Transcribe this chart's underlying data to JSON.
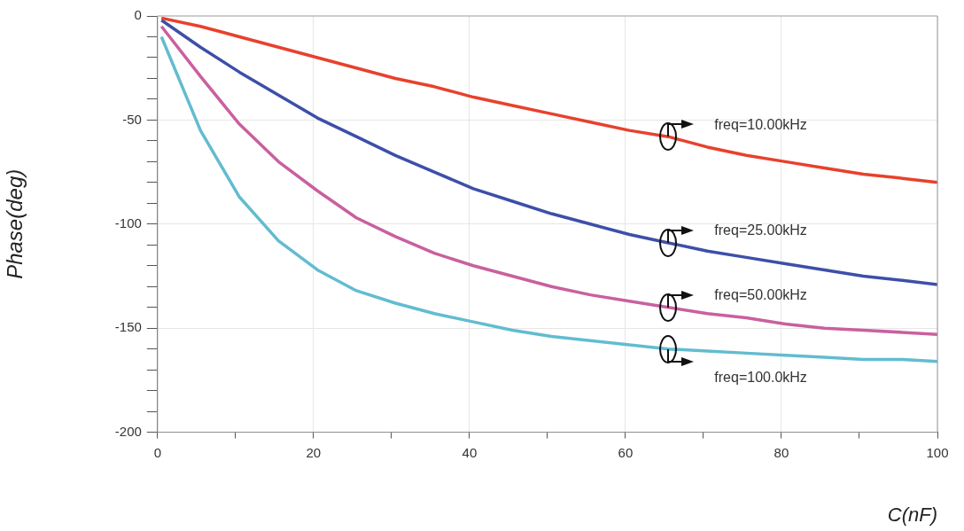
{
  "chart_data": {
    "type": "line",
    "xlabel": "C(nF)",
    "ylabel": "Phase(deg)",
    "x": [
      0.5,
      5.5,
      10.5,
      15.5,
      20.5,
      25.5,
      30.5,
      35.5,
      40.5,
      45.5,
      50.5,
      55.5,
      60.5,
      65.5,
      70.5,
      75.5,
      80.5,
      85.5,
      90.5,
      95.5,
      100
    ],
    "series": [
      {
        "color": "#e8412c",
        "values": [
          -1,
          -5,
          -10,
          -15,
          -20,
          -25,
          -30,
          -34,
          -39,
          -43,
          -47,
          -51,
          -55,
          -58,
          -63,
          -67,
          -70,
          -73,
          -76,
          -78,
          -80
        ]
      },
      {
        "color": "#3d4fa8",
        "values": [
          -2,
          -15,
          -27,
          -38,
          -49,
          -58,
          -67,
          -75,
          -83,
          -89,
          -95,
          -100,
          -105,
          -109,
          -113,
          -116,
          -119,
          -122,
          -125,
          -127,
          -129
        ]
      },
      {
        "color": "#c9609f",
        "values": [
          -5,
          -29,
          -52,
          -70,
          -84,
          -97,
          -106,
          -114,
          -120,
          -125,
          -130,
          -134,
          -137,
          -140,
          -143,
          -145,
          -148,
          -150,
          -151,
          -152,
          -153
        ]
      },
      {
        "color": "#62bcd0",
        "values": [
          -10,
          -55,
          -87,
          -108,
          -122,
          -132,
          -138,
          -143,
          -147,
          -151,
          -154,
          -156,
          -158,
          -160,
          -161,
          -162,
          -163,
          -164,
          -165,
          -165,
          -166
        ]
      }
    ],
    "xlim": [
      0,
      100
    ],
    "ylim": [
      -200,
      0
    ],
    "xticks": [
      0,
      {
        "value": 10,
        "label": null
      },
      20,
      {
        "value": 30,
        "label": null
      },
      40,
      {
        "value": 50,
        "label": null
      },
      60,
      {
        "value": 70,
        "label": null
      },
      80,
      {
        "value": 90,
        "label": null
      },
      100
    ],
    "yticks": [
      -200,
      {
        "value": -190,
        "label": null
      },
      {
        "value": -180,
        "label": null
      },
      {
        "value": -170,
        "label": null
      },
      {
        "value": -160,
        "label": null
      },
      -150,
      {
        "value": -140,
        "label": null
      },
      {
        "value": -130,
        "label": null
      },
      {
        "value": -120,
        "label": null
      },
      {
        "value": -110,
        "label": null
      },
      -100,
      {
        "value": -90,
        "label": null
      },
      {
        "value": -80,
        "label": null
      },
      {
        "value": -70,
        "label": null
      },
      {
        "value": -60,
        "label": null
      },
      -50,
      {
        "value": -40,
        "label": null
      },
      {
        "value": -30,
        "label": null
      },
      {
        "value": -20,
        "label": null
      },
      {
        "value": -10,
        "label": null
      },
      0
    ],
    "grid": true,
    "legend": false,
    "marker": "none",
    "line_style": "solid",
    "annotations": [
      "freq=10.00kHz",
      "freq=25.00kHz",
      "freq=50.00kHz",
      "freq=100.0kHz"
    ]
  }
}
